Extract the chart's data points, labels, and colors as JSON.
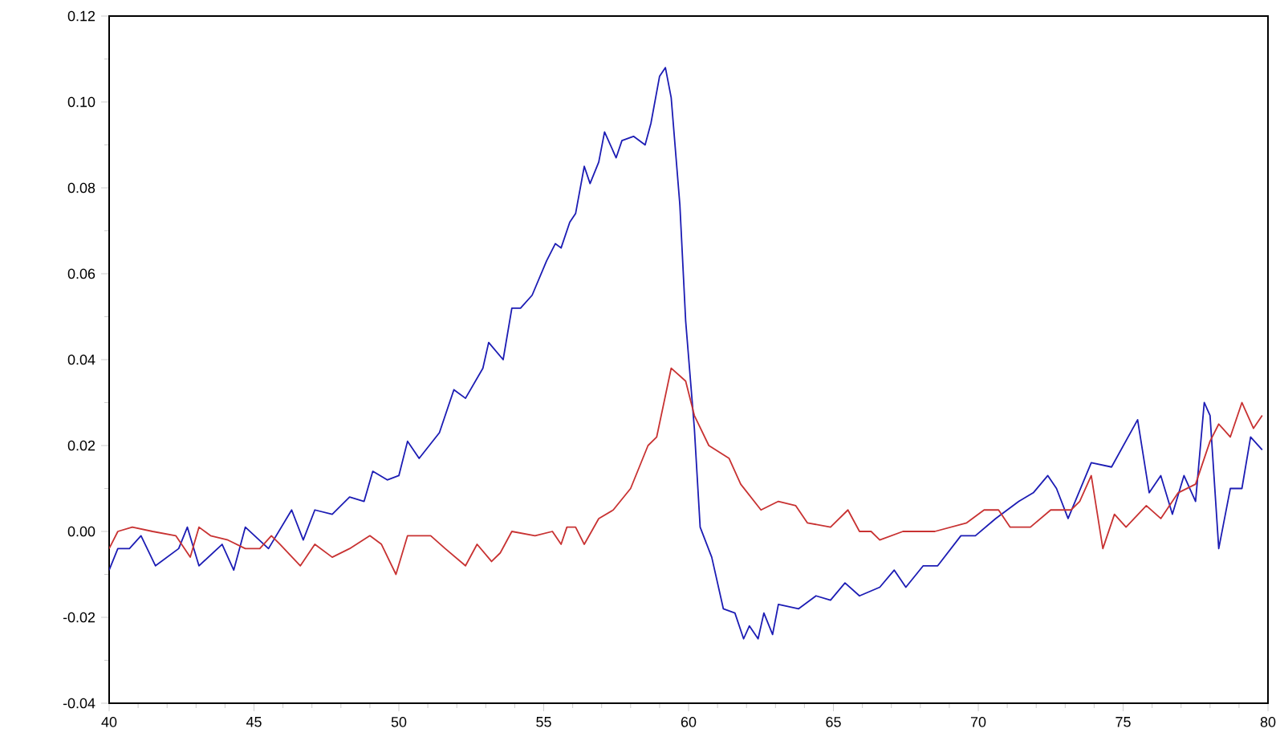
{
  "chart_data": {
    "type": "line",
    "xlim": [
      40,
      80
    ],
    "xticks": [
      40,
      45,
      50,
      55,
      60,
      65,
      70,
      75,
      80
    ],
    "ylim": [
      -0.04,
      0.12
    ],
    "yticks": [
      {
        "value": -0.04,
        "label": "-0.04"
      },
      {
        "value": -0.02,
        "label": "-0.02"
      },
      {
        "value": 0,
        "label": "0.00"
      },
      {
        "value": 0.02,
        "label": "0.02"
      },
      {
        "value": 0.04,
        "label": "0.04"
      },
      {
        "value": 0.06,
        "label": "0.06"
      },
      {
        "value": 0.08,
        "label": "0.08"
      },
      {
        "value": 0.1,
        "label": "0.10"
      },
      {
        "value": 0.12,
        "label": "0.12"
      }
    ],
    "marker": "none",
    "line_style": "solid",
    "series": [
      {
        "color": "#1c1cb4",
        "x": [
          40.0,
          40.3,
          40.7,
          41.1,
          41.6,
          42.4,
          42.7,
          43.1,
          43.9,
          44.3,
          44.7,
          45.5,
          46.3,
          46.7,
          47.1,
          47.7,
          48.3,
          48.8,
          49.1,
          49.6,
          50.0,
          50.3,
          50.7,
          51.4,
          51.9,
          52.3,
          52.9,
          53.1,
          53.6,
          53.9,
          54.2,
          54.6,
          55.1,
          55.4,
          55.6,
          55.9,
          56.1,
          56.4,
          56.6,
          56.9,
          57.1,
          57.5,
          57.7,
          58.1,
          58.5,
          58.7,
          59.0,
          59.2,
          59.4,
          59.7,
          59.9,
          60.2,
          60.4,
          60.8,
          61.2,
          61.6,
          61.9,
          62.1,
          62.4,
          62.6,
          62.9,
          63.1,
          63.8,
          64.4,
          64.9,
          65.4,
          65.9,
          66.6,
          67.1,
          67.5,
          68.1,
          68.6,
          69.4,
          69.9,
          70.6,
          71.4,
          71.9,
          72.4,
          72.7,
          73.1,
          73.9,
          74.6,
          75.5,
          75.9,
          76.3,
          76.7,
          77.1,
          77.5,
          77.8,
          78.0,
          78.3,
          78.7,
          79.1,
          79.4,
          79.8
        ],
        "values": [
          -0.009,
          -0.004,
          -0.004,
          -0.001,
          -0.008,
          -0.004,
          0.001,
          -0.008,
          -0.003,
          -0.009,
          0.001,
          -0.004,
          0.005,
          -0.002,
          0.005,
          0.004,
          0.008,
          0.007,
          0.014,
          0.012,
          0.013,
          0.021,
          0.017,
          0.023,
          0.033,
          0.031,
          0.038,
          0.044,
          0.04,
          0.052,
          0.052,
          0.055,
          0.063,
          0.067,
          0.066,
          0.072,
          0.074,
          0.085,
          0.081,
          0.086,
          0.093,
          0.087,
          0.091,
          0.092,
          0.09,
          0.095,
          0.106,
          0.108,
          0.101,
          0.076,
          0.049,
          0.024,
          0.001,
          -0.006,
          -0.018,
          -0.019,
          -0.025,
          -0.022,
          -0.025,
          -0.019,
          -0.024,
          -0.017,
          -0.018,
          -0.015,
          -0.016,
          -0.012,
          -0.015,
          -0.013,
          -0.009,
          -0.013,
          -0.008,
          -0.008,
          -0.001,
          -0.001,
          0.003,
          0.007,
          0.009,
          0.013,
          0.01,
          0.003,
          0.016,
          0.015,
          0.026,
          0.009,
          0.013,
          0.004,
          0.013,
          0.007,
          0.03,
          0.027,
          -0.004,
          0.01,
          0.01,
          0.022,
          0.019
        ]
      },
      {
        "color": "#c83232",
        "x": [
          40.0,
          40.3,
          40.8,
          41.5,
          42.3,
          42.8,
          43.1,
          43.5,
          44.1,
          44.7,
          45.2,
          45.6,
          45.9,
          46.6,
          47.1,
          47.7,
          48.3,
          49.0,
          49.4,
          49.9,
          50.3,
          51.1,
          51.6,
          52.3,
          52.7,
          53.2,
          53.5,
          53.9,
          54.7,
          55.3,
          55.6,
          55.8,
          56.1,
          56.4,
          56.9,
          57.4,
          58.0,
          58.6,
          58.9,
          59.4,
          59.9,
          60.2,
          60.7,
          61.4,
          61.8,
          62.5,
          63.1,
          63.7,
          64.1,
          64.9,
          65.5,
          65.9,
          66.3,
          66.6,
          67.4,
          68.5,
          69.6,
          70.2,
          70.7,
          71.1,
          71.8,
          72.5,
          73.2,
          73.5,
          73.9,
          74.3,
          74.7,
          75.1,
          75.8,
          76.3,
          76.9,
          77.5,
          78.0,
          78.3,
          78.7,
          79.1,
          79.5,
          79.8
        ],
        "values": [
          -0.004,
          0.0,
          0.001,
          0.0,
          -0.001,
          -0.006,
          0.001,
          -0.001,
          -0.002,
          -0.004,
          -0.004,
          -0.001,
          -0.003,
          -0.008,
          -0.003,
          -0.006,
          -0.004,
          -0.001,
          -0.003,
          -0.01,
          -0.001,
          -0.001,
          -0.004,
          -0.008,
          -0.003,
          -0.007,
          -0.005,
          0.0,
          -0.001,
          0.0,
          -0.003,
          0.001,
          0.001,
          -0.003,
          0.003,
          0.005,
          0.01,
          0.02,
          0.022,
          0.038,
          0.035,
          0.027,
          0.02,
          0.017,
          0.011,
          0.005,
          0.007,
          0.006,
          0.002,
          0.001,
          0.005,
          0.0,
          0.0,
          -0.002,
          0.0,
          0.0,
          0.002,
          0.005,
          0.005,
          0.001,
          0.001,
          0.005,
          0.005,
          0.007,
          0.013,
          -0.004,
          0.004,
          0.001,
          0.006,
          0.003,
          0.009,
          0.011,
          0.021,
          0.025,
          0.022,
          0.03,
          0.024,
          0.027
        ]
      }
    ]
  }
}
